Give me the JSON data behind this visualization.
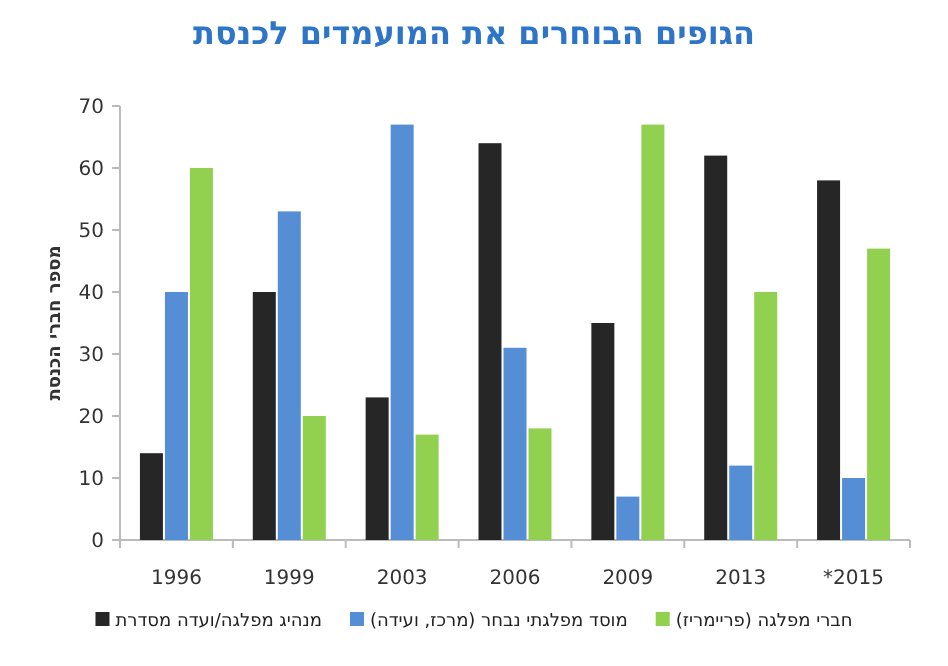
{
  "chart_data": {
    "type": "bar",
    "title": "הגופים הבוחרים את המועמדים לכנסת",
    "ylabel": "מספר חברי הכנסת",
    "categories": [
      "1996",
      "1999",
      "2003",
      "2006",
      "2009",
      "2013",
      "*2015"
    ],
    "series": [
      {
        "name": "מנהיג מפלגה/ועדה מסדרת",
        "color": "#262626",
        "values": [
          14,
          40,
          23,
          64,
          35,
          62,
          58
        ]
      },
      {
        "name": "מוסד מפלגתי נבחר (מרכז, ועידה)",
        "color": "#558ed5",
        "values": [
          40,
          53,
          67,
          31,
          7,
          12,
          10
        ]
      },
      {
        "name": "חברי מפלגה (פריימריז)",
        "color": "#92d050",
        "values": [
          60,
          20,
          17,
          18,
          67,
          40,
          47
        ]
      }
    ],
    "ylim": [
      0,
      70
    ],
    "yticks": [
      0,
      10,
      20,
      30,
      40,
      50,
      60,
      70
    ],
    "legend": "bottom"
  }
}
